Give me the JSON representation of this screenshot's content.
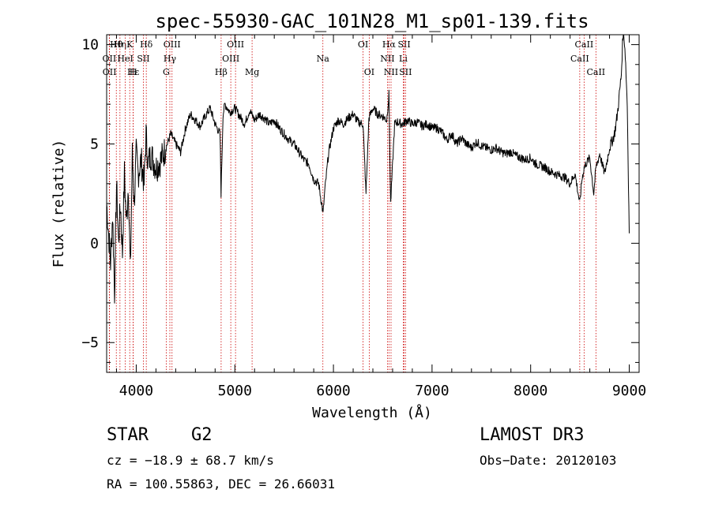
{
  "chart_data": {
    "type": "line",
    "title": "spec-55930-GAC_101N28_M1_sp01-139.fits",
    "xlabel": "Wavelength (Å)",
    "ylabel": "Flux (relative)",
    "xlim": [
      3700,
      9100
    ],
    "ylim": [
      -6.5,
      10.5
    ],
    "xticks": [
      4000,
      5000,
      6000,
      7000,
      8000,
      9000
    ],
    "yticks": [
      -5,
      0,
      5,
      10
    ],
    "series": [
      {
        "name": "flux",
        "x": [
          3700,
          3720,
          3740,
          3760,
          3780,
          3800,
          3820,
          3840,
          3860,
          3880,
          3900,
          3920,
          3940,
          3960,
          3980,
          4000,
          4020,
          4050,
          4080,
          4100,
          4120,
          4150,
          4200,
          4250,
          4300,
          4350,
          4400,
          4450,
          4500,
          4550,
          4600,
          4650,
          4700,
          4750,
          4800,
          4850,
          4860,
          4880,
          4900,
          4950,
          5000,
          5050,
          5100,
          5150,
          5200,
          5250,
          5300,
          5350,
          5400,
          5450,
          5500,
          5550,
          5600,
          5650,
          5700,
          5750,
          5800,
          5850,
          5880,
          5895,
          5910,
          5950,
          6000,
          6050,
          6100,
          6150,
          6200,
          6250,
          6300,
          6330,
          6360,
          6400,
          6450,
          6500,
          6540,
          6563,
          6580,
          6620,
          6650,
          6700,
          6750,
          6800,
          6850,
          6900,
          6950,
          7000,
          7050,
          7100,
          7150,
          7200,
          7250,
          7300,
          7350,
          7400,
          7450,
          7500,
          7550,
          7600,
          7650,
          7700,
          7750,
          7800,
          7850,
          7900,
          7950,
          8000,
          8050,
          8100,
          8150,
          8200,
          8250,
          8300,
          8350,
          8400,
          8450,
          8498,
          8520,
          8542,
          8560,
          8600,
          8640,
          8662,
          8700,
          8750,
          8800,
          8850,
          8880,
          8900,
          8920,
          8940,
          8960,
          8980,
          9000
        ],
        "values": [
          2.0,
          0.5,
          -1.0,
          1.5,
          -2.5,
          3.0,
          0.0,
          2.0,
          -0.5,
          3.5,
          1.0,
          3.0,
          -1.5,
          4.5,
          2.0,
          4.5,
          3.5,
          4.2,
          3.0,
          5.5,
          4.0,
          4.5,
          3.8,
          4.2,
          4.8,
          5.5,
          5.0,
          4.6,
          5.8,
          6.5,
          6.2,
          5.9,
          6.4,
          6.8,
          6.0,
          5.5,
          2.5,
          6.5,
          7.0,
          6.6,
          6.8,
          6.4,
          6.0,
          6.7,
          6.2,
          6.5,
          6.3,
          6.0,
          6.2,
          5.8,
          5.5,
          5.2,
          5.0,
          4.6,
          4.2,
          4.0,
          3.2,
          3.0,
          2.0,
          1.5,
          2.5,
          4.5,
          5.8,
          6.2,
          6.0,
          6.3,
          6.5,
          6.1,
          6.0,
          2.5,
          6.3,
          6.8,
          6.5,
          6.4,
          6.2,
          7.5,
          2.0,
          6.0,
          6.1,
          6.0,
          6.2,
          6.0,
          6.1,
          5.9,
          6.0,
          5.8,
          5.8,
          5.6,
          5.2,
          5.5,
          5.0,
          5.3,
          5.0,
          4.8,
          5.1,
          4.9,
          4.8,
          4.7,
          4.8,
          4.6,
          4.5,
          4.6,
          4.4,
          4.3,
          4.2,
          4.3,
          4.0,
          3.9,
          3.8,
          3.6,
          3.5,
          3.4,
          3.3,
          3.0,
          3.5,
          2.0,
          3.2,
          3.8,
          4.0,
          4.3,
          2.5,
          3.8,
          4.5,
          3.5,
          4.8,
          5.5,
          6.5,
          7.5,
          8.5,
          11.0,
          9.5,
          7.0,
          0.5
        ]
      }
    ],
    "lines": [
      {
        "name": "Hθ",
        "wavelength": 3798,
        "row": 0
      },
      {
        "name": "Hη",
        "wavelength": 3835,
        "row": 0
      },
      {
        "name": "K",
        "wavelength": 3934,
        "row": 0
      },
      {
        "name": "Hδ",
        "wavelength": 4102,
        "row": 0
      },
      {
        "name": "OIII",
        "wavelength": 4363,
        "row": 0
      },
      {
        "name": "OIII",
        "wavelength": 5007,
        "row": 0
      },
      {
        "name": "OI",
        "wavelength": 6300,
        "row": 0
      },
      {
        "name": "Hα",
        "wavelength": 6563,
        "row": 0
      },
      {
        "name": "SII",
        "wavelength": 6717,
        "row": 0
      },
      {
        "name": "CaII",
        "wavelength": 8542,
        "row": 0
      },
      {
        "name": "OII",
        "wavelength": 3727,
        "row": 1
      },
      {
        "name": "HeI",
        "wavelength": 3889,
        "row": 1
      },
      {
        "name": "SII",
        "wavelength": 4072,
        "row": 1
      },
      {
        "name": "Hγ",
        "wavelength": 4341,
        "row": 1
      },
      {
        "name": "OIII",
        "wavelength": 4959,
        "row": 1
      },
      {
        "name": "Na",
        "wavelength": 5893,
        "row": 1
      },
      {
        "name": "NII",
        "wavelength": 6548,
        "row": 1
      },
      {
        "name": "Li",
        "wavelength": 6708,
        "row": 1
      },
      {
        "name": "CaII",
        "wavelength": 8498,
        "row": 1
      },
      {
        "name": "OII",
        "wavelength": 3729,
        "row": 2
      },
      {
        "name": "Hε",
        "wavelength": 3970,
        "row": 2
      },
      {
        "name": "H",
        "wavelength": 3969,
        "row": 2
      },
      {
        "name": "G",
        "wavelength": 4304,
        "row": 2
      },
      {
        "name": "Hβ",
        "wavelength": 4861,
        "row": 2
      },
      {
        "name": "Mg",
        "wavelength": 5175,
        "row": 2
      },
      {
        "name": "OI",
        "wavelength": 6363,
        "row": 2
      },
      {
        "name": "NII",
        "wavelength": 6584,
        "row": 2
      },
      {
        "name": "SII",
        "wavelength": 6731,
        "row": 2
      },
      {
        "name": "CaII",
        "wavelength": 8662,
        "row": 2
      }
    ],
    "line_color": "#cc0000",
    "spectrum_color": "#000000"
  },
  "info": {
    "class": "STAR",
    "subclass": "G2",
    "cz": "cz = −18.9 ± 68.7 km/s",
    "coords": "RA = 100.55863, DEC =  26.66031",
    "survey": "LAMOST DR3",
    "obs_date": "Obs−Date: 20120103"
  }
}
